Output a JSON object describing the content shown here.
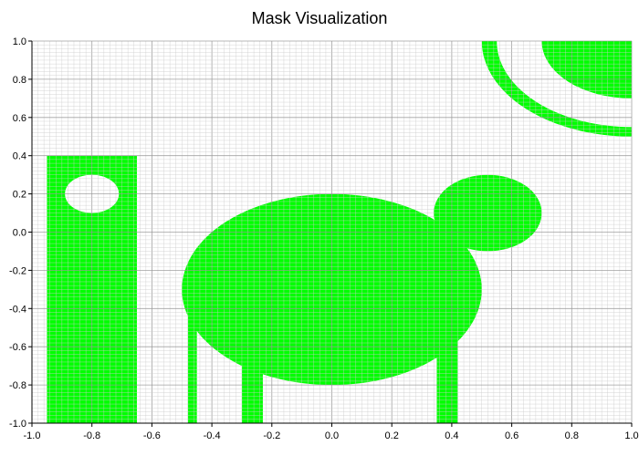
{
  "chart_data": {
    "type": "heatmap",
    "title": "Mask Visualization",
    "xlabel": "",
    "ylabel": "",
    "xlim": [
      -1.0,
      1.0
    ],
    "ylim": [
      -1.0,
      1.0
    ],
    "grid": true,
    "minor_grid_step": 0.02,
    "major_grid_step": 0.2,
    "x_ticks": [
      -1.0,
      -0.8,
      -0.6,
      -0.4,
      -0.2,
      0.0,
      0.2,
      0.4,
      0.6,
      0.8,
      1.0
    ],
    "y_ticks": [
      -1.0,
      -0.8,
      -0.6,
      -0.4,
      -0.2,
      0.0,
      0.2,
      0.4,
      0.6,
      0.8,
      1.0
    ],
    "x_tick_labels": [
      "-1.0",
      "-0.8",
      "-0.6",
      "-0.4",
      "-0.2",
      "0.0",
      "0.2",
      "0.4",
      "0.6",
      "0.8",
      "1.0"
    ],
    "y_tick_labels": [
      "-1.0",
      "-0.8",
      "-0.6",
      "-0.4",
      "-0.2",
      "0.0",
      "0.2",
      "0.4",
      "0.6",
      "0.8",
      "1.0"
    ],
    "mask_color": "#00ff00",
    "grid_color": "#cccccc",
    "major_grid_color": "#999999",
    "shapes": [
      {
        "name": "left-rectangle",
        "kind": "rect",
        "x0": -0.95,
        "x1": -0.65,
        "y0": -1.0,
        "y1": 0.4
      },
      {
        "name": "left-rectangle-hole",
        "kind": "ellipse-hole",
        "cx": -0.8,
        "cy": 0.2,
        "rx": 0.09,
        "ry": 0.1
      },
      {
        "name": "body-ellipse",
        "kind": "ellipse",
        "cx": 0.0,
        "cy": -0.3,
        "rx": 0.5,
        "ry": 0.5
      },
      {
        "name": "head-ellipse",
        "kind": "ellipse",
        "cx": 0.52,
        "cy": 0.1,
        "rx": 0.18,
        "ry": 0.2
      },
      {
        "name": "leg-1",
        "kind": "rect",
        "x0": -0.48,
        "x1": -0.45,
        "y0": -1.0,
        "y1": -0.4
      },
      {
        "name": "leg-2",
        "kind": "rect",
        "x0": -0.3,
        "x1": -0.23,
        "y0": -1.0,
        "y1": -0.7
      },
      {
        "name": "leg-3",
        "kind": "rect",
        "x0": 0.35,
        "x1": 0.42,
        "y0": -1.0,
        "y1": -0.55
      },
      {
        "name": "ring-arc",
        "kind": "ring",
        "cx": 1.0,
        "cy": 1.0,
        "r_inner": 0.45,
        "r_outer": 0.5
      },
      {
        "name": "quarter-disk",
        "kind": "disk",
        "cx": 1.0,
        "cy": 1.0,
        "r": 0.3
      }
    ]
  }
}
